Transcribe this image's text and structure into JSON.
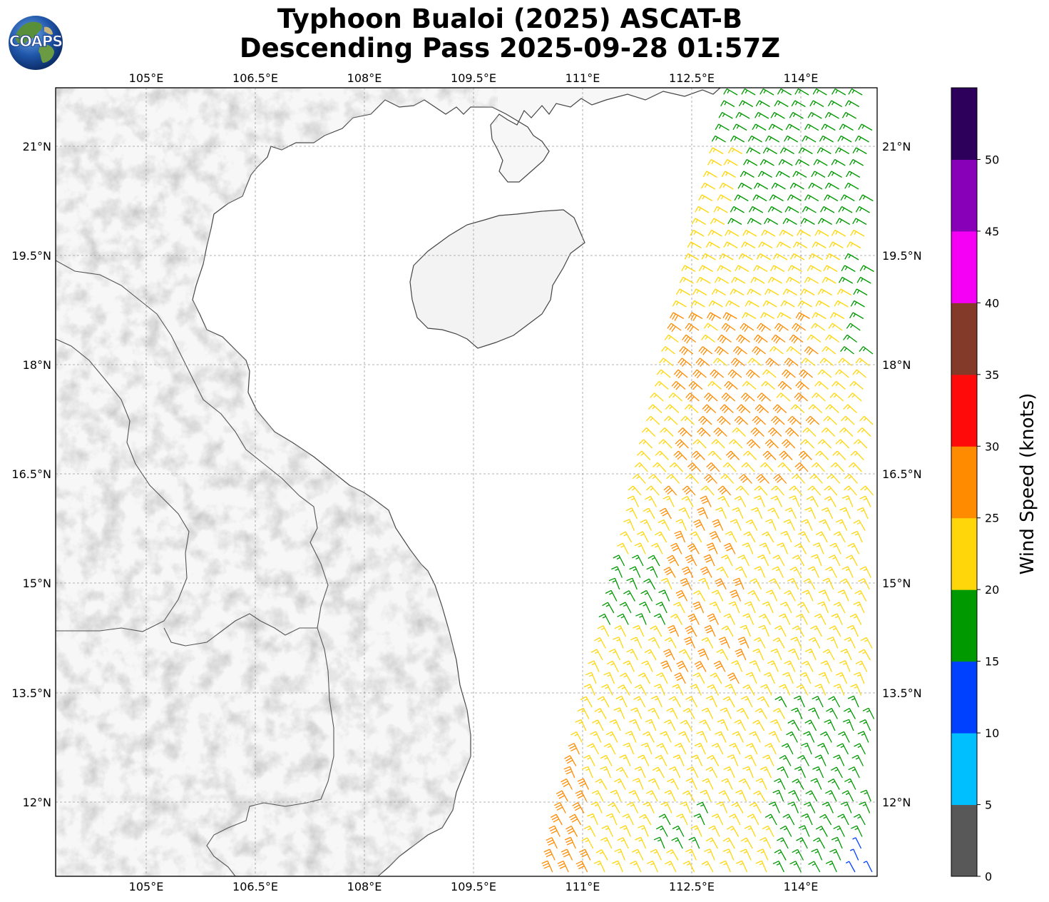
{
  "title": {
    "line1": "Typhoon Bualoi (2025) ASCAT-B",
    "line2": "Descending Pass 2025-09-28 01:57Z"
  },
  "logo": {
    "text": "COAPS",
    "icon": "globe-icon"
  },
  "map": {
    "lon_labels": [
      "105°E",
      "106.5°E",
      "108°E",
      "109.5°E",
      "111°E",
      "112.5°E",
      "114°E"
    ],
    "lat_labels": [
      "21°N",
      "19.5°N",
      "18°N",
      "16.5°N",
      "15°N",
      "13.5°N",
      "12°N"
    ],
    "lon_range": [
      103.75,
      115.05
    ],
    "lat_range": [
      10.95,
      21.8
    ],
    "gridlines": true
  },
  "colorbar": {
    "label": "Wind Speed (knots)",
    "ticks": [
      "0",
      "5",
      "10",
      "15",
      "20",
      "25",
      "30",
      "35",
      "40",
      "45",
      "50"
    ],
    "bins": [
      {
        "min": 0,
        "max": 5,
        "color": "#585858"
      },
      {
        "min": 5,
        "max": 10,
        "color": "#00bfff"
      },
      {
        "min": 10,
        "max": 15,
        "color": "#0040ff"
      },
      {
        "min": 15,
        "max": 20,
        "color": "#009900"
      },
      {
        "min": 20,
        "max": 25,
        "color": "#ffd60a"
      },
      {
        "min": 25,
        "max": 30,
        "color": "#ff8c00"
      },
      {
        "min": 30,
        "max": 35,
        "color": "#ff0a0a"
      },
      {
        "min": 35,
        "max": 40,
        "color": "#833a29"
      },
      {
        "min": 40,
        "max": 45,
        "color": "#f500f5"
      },
      {
        "min": 45,
        "max": 50,
        "color": "#8800b8"
      },
      {
        "min": 50,
        "max": 55,
        "color": "#2d005c"
      }
    ]
  },
  "wind_field": {
    "instrument": "ASCAT-B",
    "dominant_colors": [
      "#009900",
      "#ffd60a",
      "#ff8c00",
      "#0040ff"
    ]
  }
}
